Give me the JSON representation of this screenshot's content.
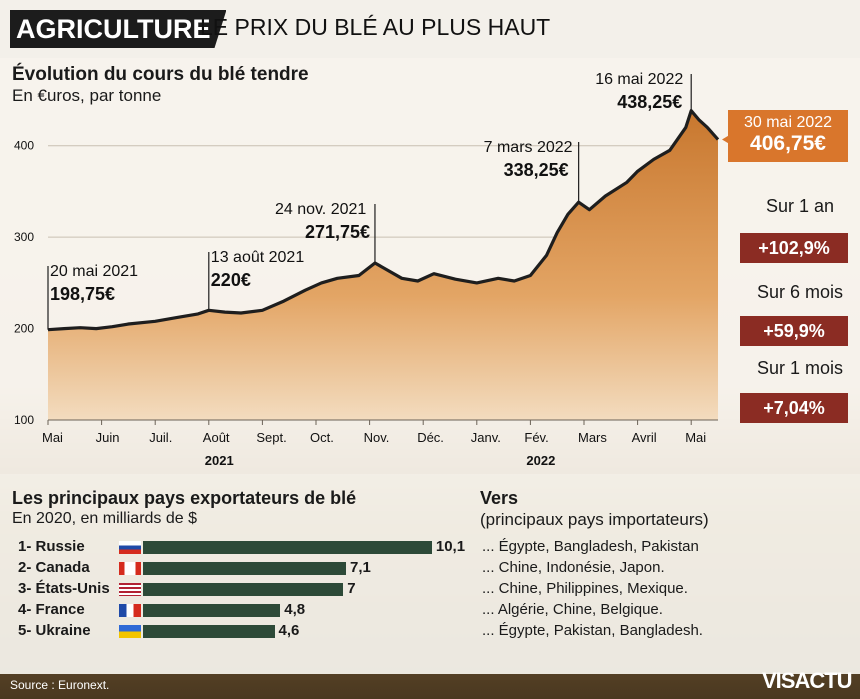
{
  "header": {
    "tag": "AGRICULTURE",
    "headline": "LE PRIX DU BLÉ AU PLUS HAUT"
  },
  "chart_title": "Évolution du cours du blé tendre",
  "chart_subtitle": "En €uros, par tonne",
  "chart_data": {
    "type": "area",
    "title": "Évolution du cours du blé tendre",
    "ylabel": "En €uros, par tonne",
    "ylim": [
      100,
      450
    ],
    "yticks": [
      100,
      200,
      300,
      400
    ],
    "xticks": [
      "Mai",
      "Juin",
      "Juil.",
      "Août",
      "Sept.",
      "Oct.",
      "Nov.",
      "Déc.",
      "Janv.",
      "Fév.",
      "Mars",
      "Avril",
      "Mai"
    ],
    "years": [
      {
        "label": "2021",
        "month": 3
      },
      {
        "label": "2022",
        "month": 9
      }
    ],
    "series": [
      {
        "name": "Blé tendre",
        "x": [
          0,
          0.3,
          0.6,
          0.9,
          1.2,
          1.5,
          2.0,
          2.4,
          2.8,
          3.0,
          3.3,
          3.6,
          4.0,
          4.4,
          4.8,
          5.1,
          5.4,
          5.8,
          6.1,
          6.3,
          6.6,
          6.9,
          7.2,
          7.6,
          8.0,
          8.4,
          8.7,
          9.0,
          9.3,
          9.5,
          9.7,
          9.9,
          10.1,
          10.4,
          10.8,
          11.0,
          11.3,
          11.6,
          11.9,
          12.0,
          12.15,
          12.3,
          12.5
        ],
        "values": [
          198.75,
          200,
          201,
          200,
          202,
          205,
          208,
          212,
          216,
          220,
          218,
          217,
          220,
          230,
          242,
          250,
          255,
          258,
          271.75,
          265,
          255,
          252,
          260,
          254,
          250,
          255,
          252,
          258,
          280,
          305,
          325,
          338.25,
          330,
          345,
          360,
          372,
          385,
          395,
          420,
          438.25,
          428,
          420,
          406.75
        ]
      }
    ],
    "annotations": [
      {
        "date": "20 mai 2021",
        "value": "198,75€",
        "month": 0,
        "price": 198.75
      },
      {
        "date": "13 août 2021",
        "value": "220€",
        "month": 3,
        "price": 220
      },
      {
        "date": "24 nov. 2021",
        "value": "271,75€",
        "month": 6.1,
        "price": 271.75
      },
      {
        "date": "7 mars 2022",
        "value": "338,25€",
        "month": 9.9,
        "price": 338.25
      },
      {
        "date": "16 mai 2022",
        "value": "438,25€",
        "month": 12.0,
        "price": 438.25
      }
    ],
    "last": {
      "date": "30 mai 2022",
      "value": "406,75€"
    }
  },
  "changes": [
    {
      "label": "Sur 1 an",
      "value": "+102,9%"
    },
    {
      "label": "Sur 6 mois",
      "value": "+59,9%"
    },
    {
      "label": "Sur 1 mois",
      "value": "+7,04%"
    }
  ],
  "exporters": {
    "title": "Les principaux pays exportateurs de blé",
    "subtitle": "En 2020, en milliards de $",
    "dest_title": "Vers",
    "dest_subtitle": "(principaux pays importateurs)",
    "rows": [
      {
        "rank": "1- Russie",
        "value": 10.1,
        "label": "10,1",
        "dest": "... Égypte, Bangladesh, Pakistan"
      },
      {
        "rank": "2- Canada",
        "value": 7.1,
        "label": "7,1",
        "dest": "... Chine, Indonésie, Japon."
      },
      {
        "rank": "3- États-Unis",
        "value": 7.0,
        "label": "7",
        "dest": "... Chine, Philippines, Mexique."
      },
      {
        "rank": "4- France",
        "value": 4.8,
        "label": "4,8",
        "dest": "... Algérie, Chine, Belgique."
      },
      {
        "rank": "5- Ukraine",
        "value": 4.6,
        "label": "4,6",
        "dest": "... Égypte, Pakistan, Bangladesh."
      }
    ]
  },
  "source": "Source : Euronext.",
  "logo": "VISACTU"
}
